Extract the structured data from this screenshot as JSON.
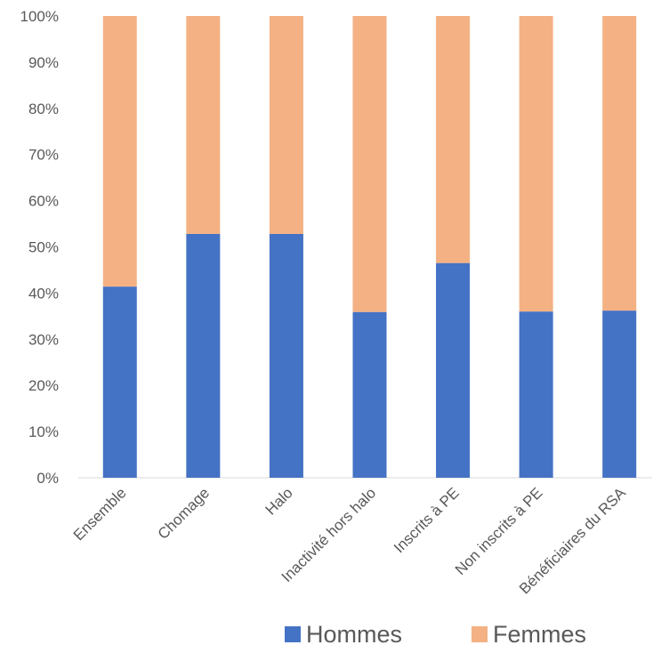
{
  "chart_data": {
    "type": "bar",
    "stacked": true,
    "categories": [
      "Ensemble",
      "Chomage",
      "Halo",
      "Inactivité hors halo",
      "Inscrits à PE",
      "Non inscrits à PE",
      "Bénéficiaires du RSA"
    ],
    "series": [
      {
        "name": "Hommes",
        "color": "#4472C4",
        "values": [
          41.4,
          52.8,
          52.8,
          35.9,
          46.5,
          36.0,
          36.2
        ]
      },
      {
        "name": "Femmes",
        "color": "#F4B183",
        "values": [
          58.6,
          47.2,
          47.2,
          64.1,
          53.5,
          64.0,
          63.8
        ]
      }
    ],
    "yticks": [
      "0%",
      "10%",
      "20%",
      "30%",
      "40%",
      "50%",
      "60%",
      "70%",
      "80%",
      "90%",
      "100%"
    ],
    "ylim": [
      0,
      100
    ],
    "grid": false,
    "legend_position": "bottom"
  }
}
